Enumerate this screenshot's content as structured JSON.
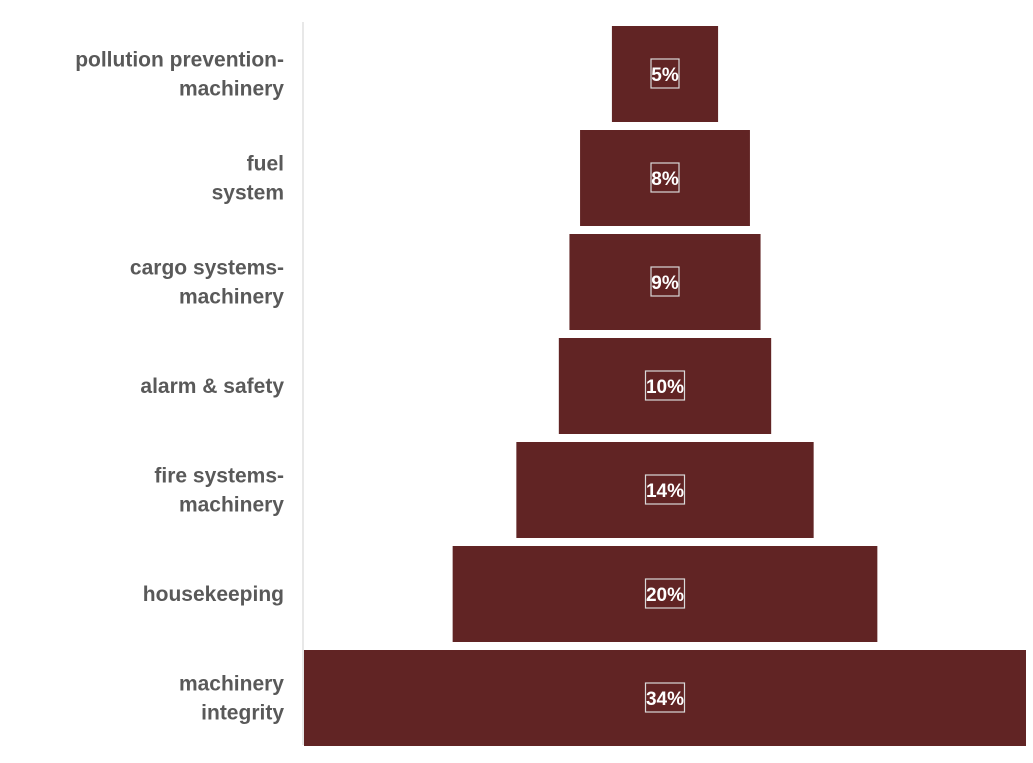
{
  "chart_data": {
    "type": "bar",
    "orientation": "horizontal-centered-funnel",
    "categories": [
      [
        "pollution prevention-",
        "machinery"
      ],
      [
        "fuel",
        "system"
      ],
      [
        "cargo systems-",
        "machinery"
      ],
      [
        "alarm & safety"
      ],
      [
        "fire systems-",
        "machinery"
      ],
      [
        "housekeeping"
      ],
      [
        "machinery",
        "integrity"
      ]
    ],
    "values": [
      5,
      8,
      9,
      10,
      14,
      20,
      34
    ],
    "value_labels": [
      "5%",
      "8%",
      "9%",
      "10%",
      "14%",
      "20%",
      "34%"
    ],
    "unit": "%",
    "title": "",
    "xlabel": "",
    "ylabel": "",
    "legend": "none",
    "grid": false,
    "colors": {
      "bar": "#612424",
      "label_text": "#595959",
      "value_text": "#ffffff",
      "value_box": "#d9d9d9",
      "axis_line": "#d9d9d9"
    }
  }
}
